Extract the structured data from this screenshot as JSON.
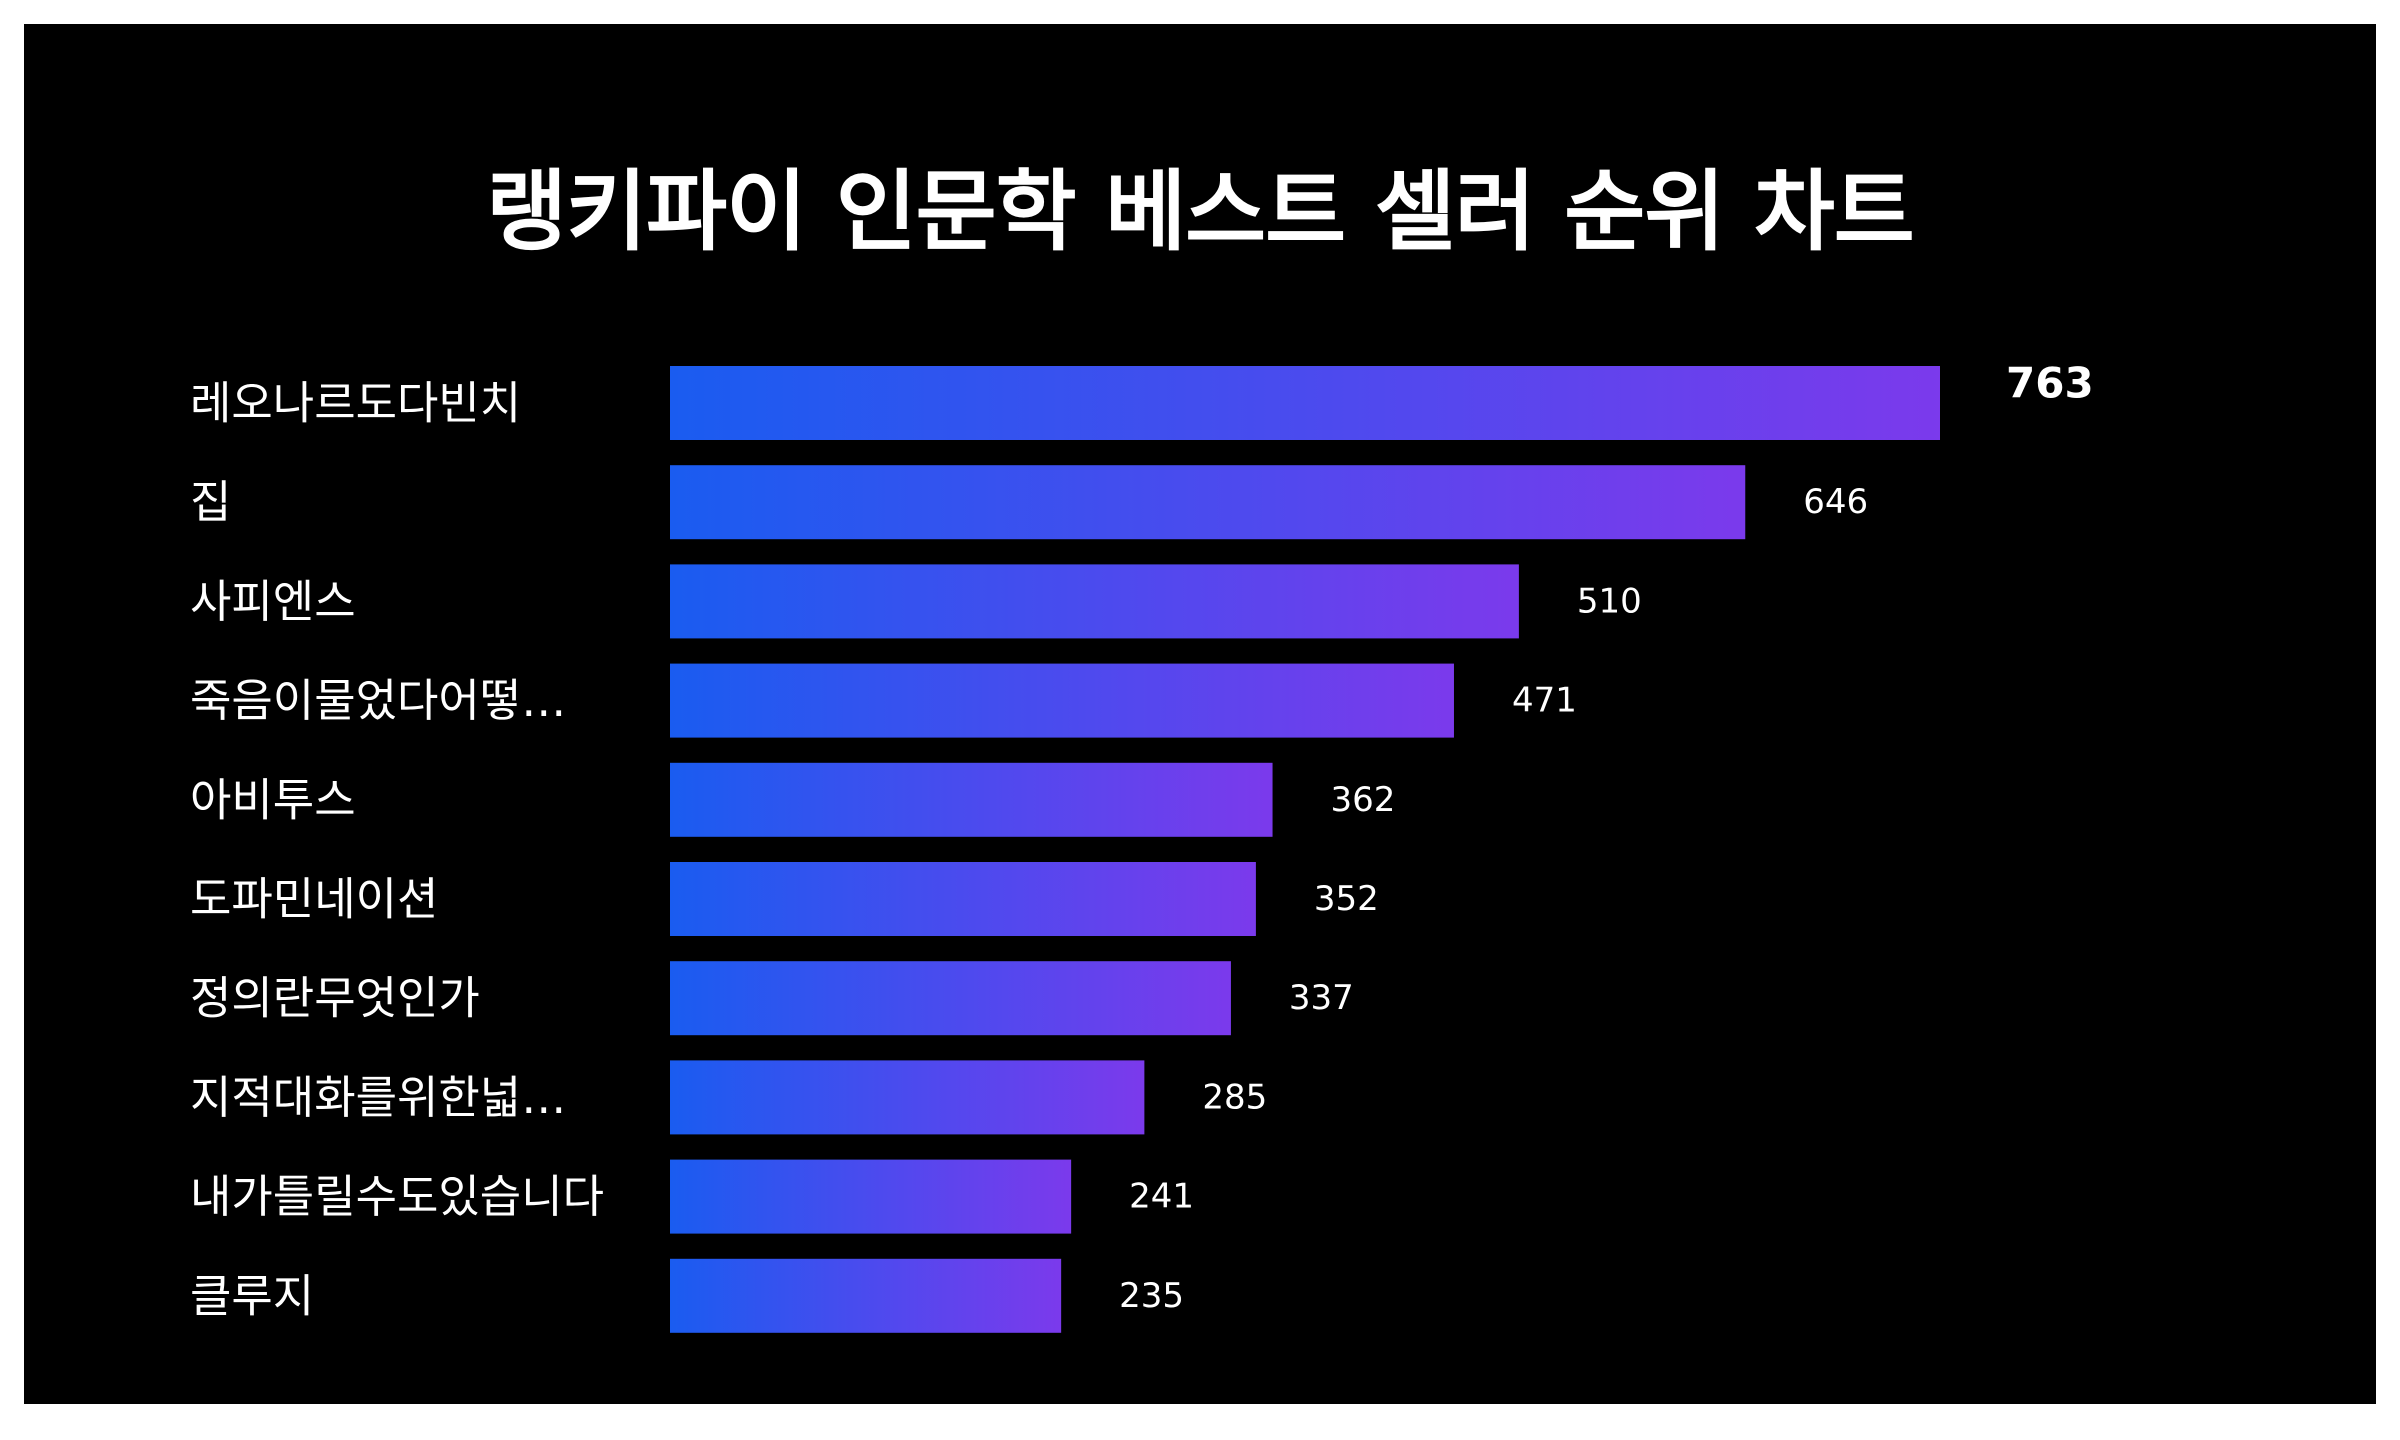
{
  "chart_data": {
    "type": "bar",
    "orientation": "horizontal",
    "title": "랭키파이 인문학 베스트 셀러 순위 차트",
    "categories": [
      "레오나르도다빈치",
      "집",
      "사피엔스",
      "죽음이물었다어떻…",
      "아비투스",
      "도파민네이션",
      "정의란무엇인가",
      "지적대화를위한넓…",
      "내가틀릴수도있습니다",
      "클루지"
    ],
    "values": [
      763,
      646,
      510,
      471,
      362,
      352,
      337,
      285,
      241,
      235
    ],
    "xlim": [
      0,
      763
    ],
    "grid": false,
    "legend": "none",
    "colors": {
      "background": "#000000",
      "bar_gradient_start": "#1a5cf0",
      "bar_gradient_end": "#7b3aec",
      "text": "#ffffff"
    }
  }
}
